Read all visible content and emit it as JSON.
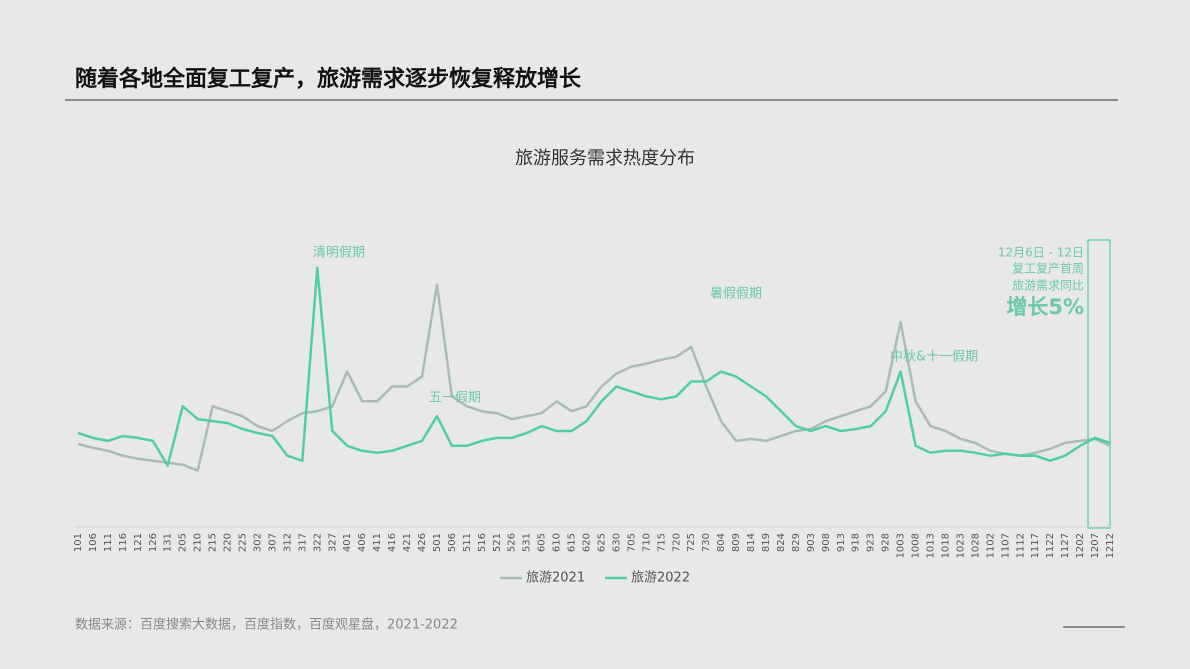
{
  "header": {
    "title": "随着各地全面复工复产，旅游需求逐步恢复释放增长"
  },
  "chart_data": {
    "type": "line",
    "title": "旅游服务需求热度分布",
    "categories": [
      "101",
      "106",
      "111",
      "116",
      "121",
      "126",
      "131",
      "205",
      "210",
      "215",
      "220",
      "225",
      "302",
      "307",
      "312",
      "317",
      "322",
      "327",
      "401",
      "406",
      "411",
      "416",
      "421",
      "426",
      "501",
      "506",
      "511",
      "516",
      "521",
      "526",
      "531",
      "605",
      "610",
      "615",
      "620",
      "625",
      "630",
      "705",
      "710",
      "715",
      "720",
      "725",
      "730",
      "804",
      "809",
      "814",
      "819",
      "824",
      "829",
      "903",
      "908",
      "913",
      "918",
      "923",
      "928",
      "1003",
      "1008",
      "1013",
      "1018",
      "1023",
      "1028",
      "1102",
      "1107",
      "1112",
      "1117",
      "1122",
      "1127",
      "1202",
      "1207",
      "1212"
    ],
    "series": [
      {
        "name": "旅游2021",
        "color": "#a9bdb3",
        "values": [
          84,
          80,
          77,
          72,
          69,
          67,
          65,
          63,
          57,
          122,
          117,
          112,
          102,
          97,
          107,
          115,
          117,
          122,
          157,
          127,
          127,
          142,
          142,
          152,
          245,
          132,
          122,
          117,
          115,
          109,
          112,
          115,
          127,
          117,
          122,
          142,
          155,
          162,
          165,
          169,
          172,
          182,
          142,
          107,
          87,
          89,
          87,
          92,
          97,
          99,
          107,
          112,
          117,
          122,
          137,
          207,
          127,
          102,
          97,
          89,
          85,
          77,
          74,
          72,
          75,
          79,
          85,
          87,
          89,
          82
        ]
      },
      {
        "name": "旅游2022",
        "color": "#4fcfa5",
        "values": [
          95,
          90,
          87,
          92,
          90,
          87,
          62,
          122,
          109,
          107,
          105,
          99,
          95,
          92,
          72,
          67,
          262,
          97,
          82,
          77,
          75,
          77,
          82,
          87,
          112,
          82,
          82,
          87,
          90,
          90,
          95,
          102,
          97,
          97,
          107,
          127,
          142,
          137,
          132,
          129,
          132,
          147,
          147,
          157,
          152,
          142,
          132,
          117,
          102,
          97,
          102,
          97,
          99,
          102,
          117,
          157,
          82,
          75,
          77,
          77,
          75,
          72,
          74,
          72,
          72,
          67,
          72,
          82,
          90,
          85
        ]
      }
    ],
    "ylim": [
      0,
      290
    ],
    "annotations": [
      "清明假期",
      "五一假期",
      "暑假假期",
      "中秋&十一假期"
    ],
    "callout": [
      "12月6日 - 12日",
      "复工复产首周",
      "旅游需求同比",
      "增长5%"
    ]
  },
  "source": "数据来源：百度搜索大数据，百度指数，百度观星盘，2021-2022"
}
